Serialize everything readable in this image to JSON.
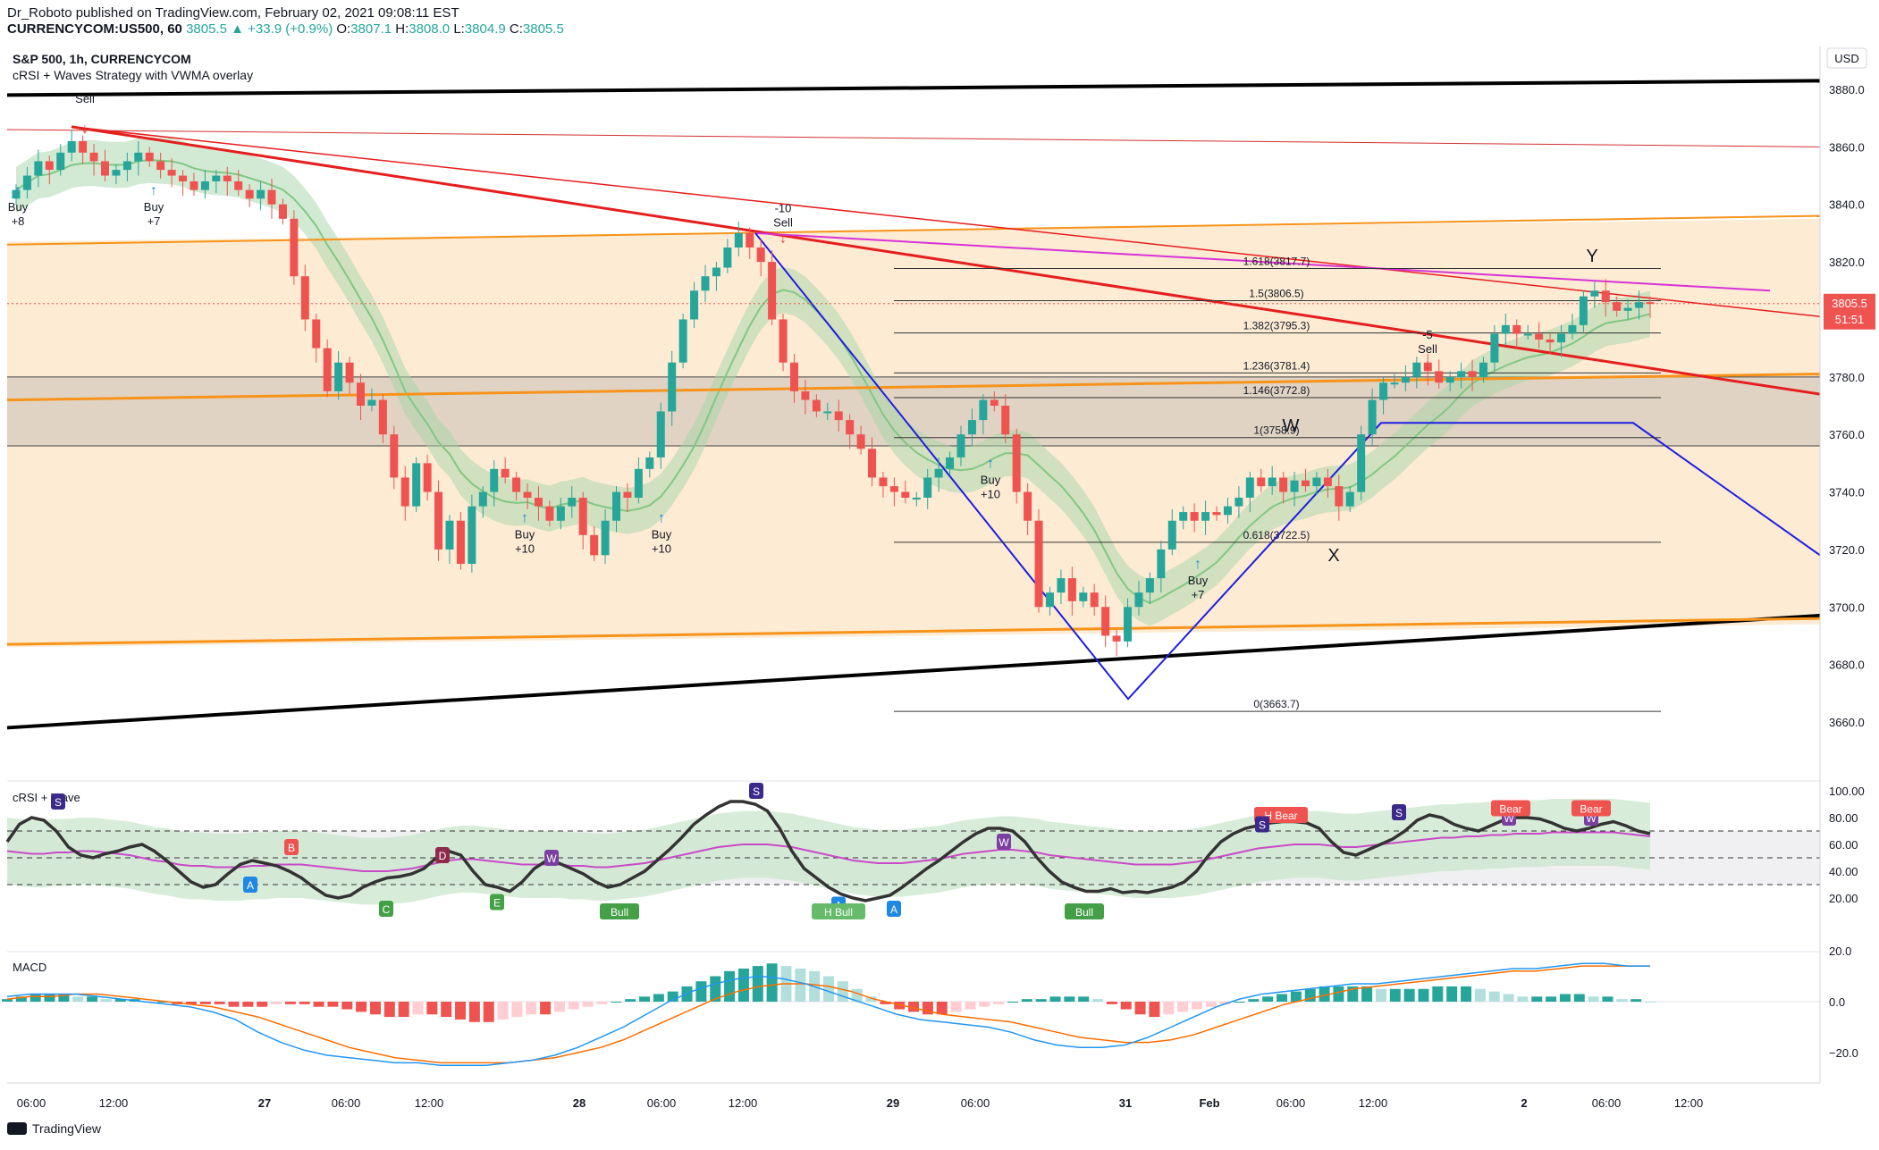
{
  "header": {
    "author": "Dr_Roboto",
    "published": "published on TradingView.com, February 02, 2021 09:08:11 EST",
    "symbol": "CURRENCYCOM:US500, 60",
    "change": "3805.5 ▲ +33.9 (+0.9%)",
    "o_label": "O:",
    "o_val": "3807.1",
    "h_label": "H:",
    "h_val": "3808.0",
    "l_label": "L:",
    "l_val": "3804.9",
    "c_label": "C:",
    "c_val": "3805.5"
  },
  "chart": {
    "title": "S&P 500, 1h, CURRENCYCOM",
    "indicator": "cRSI + Waves Strategy with VWMA overlay",
    "currency": "USD",
    "last_price": "3805.5",
    "countdown": "51:51"
  },
  "colors": {
    "up": "#26a69a",
    "down": "#ef5350",
    "red_line": "#e51e1e",
    "orange": "#f7931a",
    "blue": "#1e1ee0",
    "magenta": "#d633d6"
  },
  "chart_data": [
    {
      "type": "line",
      "title": "S&P 500, 1h, CURRENCYCOM",
      "ylim": [
        3650,
        3890
      ],
      "y_ticks": [
        3660,
        3680,
        3700,
        3720,
        3740,
        3760,
        3780,
        3800,
        3820,
        3840,
        3860,
        3880
      ],
      "x_ticks": [
        "06:00",
        "12:00",
        "27",
        "06:00",
        "12:00",
        "28",
        "06:00",
        "12:00",
        "29",
        "06:00",
        "31",
        "Feb",
        "06:00",
        "12:00",
        "2",
        "06:00",
        "12:00"
      ],
      "close_series": [
        3845,
        3850,
        3855,
        3852,
        3858,
        3862,
        3858,
        3855,
        3850,
        3852,
        3855,
        3858,
        3855,
        3852,
        3850,
        3848,
        3845,
        3848,
        3850,
        3848,
        3845,
        3842,
        3845,
        3840,
        3835,
        3815,
        3800,
        3790,
        3775,
        3785,
        3778,
        3770,
        3772,
        3760,
        3745,
        3735,
        3750,
        3740,
        3720,
        3730,
        3715,
        3735,
        3740,
        3748,
        3745,
        3740,
        3738,
        3735,
        3730,
        3735,
        3738,
        3725,
        3718,
        3730,
        3740,
        3738,
        3748,
        3752,
        3768,
        3785,
        3800,
        3810,
        3815,
        3818,
        3825,
        3830,
        3825,
        3820,
        3800,
        3785,
        3775,
        3772,
        3768,
        3768,
        3765,
        3760,
        3755,
        3745,
        3742,
        3740,
        3738,
        3738,
        3745,
        3748,
        3752,
        3760,
        3765,
        3772,
        3770,
        3760,
        3740,
        3730,
        3700,
        3705,
        3710,
        3702,
        3705,
        3700,
        3690,
        3688,
        3700,
        3705,
        3710,
        3720,
        3730,
        3733,
        3730,
        3733,
        3732,
        3735,
        3738,
        3745,
        3742,
        3745,
        3740,
        3744,
        3742,
        3745,
        3742,
        3735,
        3740,
        3760,
        3772,
        3778,
        3778,
        3780,
        3785,
        3782,
        3778,
        3780,
        3782,
        3780,
        3785,
        3795,
        3798,
        3795,
        3795,
        3793,
        3792,
        3795,
        3798,
        3808,
        3810,
        3806,
        3803,
        3804,
        3806,
        3805.5
      ],
      "fib_levels": [
        {
          "label": "1.618(3817.7)",
          "value": 3817.7
        },
        {
          "label": "1.5(3806.5)",
          "value": 3806.5
        },
        {
          "label": "1.382(3795.3)",
          "value": 3795.3
        },
        {
          "label": "1.236(3781.4)",
          "value": 3781.4
        },
        {
          "label": "1.146(3772.8)",
          "value": 3772.8
        },
        {
          "label": "1(3758.9)",
          "value": 3758.9
        },
        {
          "label": "0.618(3722.5)",
          "value": 3722.5
        },
        {
          "label": "0(3663.7)",
          "value": 3663.7
        }
      ],
      "signals": [
        {
          "text": "Sell",
          "kind": "sell"
        },
        {
          "text": "Buy",
          "sub": "+8",
          "kind": "buy"
        },
        {
          "text": "Buy",
          "sub": "+7",
          "kind": "buy"
        },
        {
          "text": "-10",
          "sub": "Sell",
          "kind": "sell"
        },
        {
          "text": "Buy",
          "sub": "+10",
          "kind": "buy"
        },
        {
          "text": "Buy",
          "sub": "+10",
          "kind": "buy"
        },
        {
          "text": "Buy",
          "sub": "+10",
          "kind": "buy"
        },
        {
          "text": "-5",
          "sub": "Sell",
          "kind": "sell"
        },
        {
          "text": "Buy",
          "sub": "+7",
          "kind": "buy"
        }
      ],
      "wave_labels": [
        "W",
        "X",
        "Y"
      ]
    },
    {
      "type": "line",
      "title": "cRSI + Wave",
      "ylim": [
        0,
        100
      ],
      "y_ticks": [
        "100.00",
        "80.00",
        "60.00",
        "40.00",
        "20.00"
      ],
      "crsi": [
        62,
        75,
        80,
        78,
        70,
        58,
        52,
        50,
        53,
        55,
        58,
        60,
        55,
        48,
        40,
        32,
        28,
        30,
        38,
        45,
        48,
        46,
        44,
        40,
        35,
        28,
        22,
        20,
        22,
        28,
        32,
        35,
        36,
        38,
        42,
        50,
        55,
        52,
        40,
        30,
        28,
        25,
        32,
        42,
        48,
        46,
        42,
        38,
        32,
        28,
        30,
        35,
        40,
        48,
        56,
        65,
        75,
        82,
        88,
        92,
        92,
        90,
        85,
        72,
        55,
        42,
        35,
        28,
        23,
        20,
        18,
        20,
        22,
        28,
        35,
        42,
        48,
        55,
        62,
        68,
        72,
        72,
        70,
        62,
        50,
        40,
        32,
        28,
        25,
        25,
        27,
        24,
        25,
        24,
        26,
        28,
        32,
        40,
        52,
        62,
        68,
        72,
        74,
        76,
        77,
        77,
        76,
        72,
        62,
        54,
        52,
        56,
        60,
        64,
        70,
        78,
        82,
        80,
        75,
        72,
        70,
        74,
        78,
        80,
        80,
        79,
        76,
        72,
        70,
        72,
        75,
        77,
        74,
        70,
        68
      ],
      "crsi_signal": [
        55,
        54,
        53,
        53,
        54,
        54,
        55,
        55,
        54,
        53,
        52,
        50,
        48,
        47,
        45,
        44,
        44,
        43,
        43,
        43,
        44,
        44,
        45,
        45,
        45,
        44,
        43,
        42,
        41,
        40,
        40,
        40,
        41,
        42,
        44,
        46,
        48,
        49,
        49,
        48,
        47,
        46,
        45,
        45,
        45,
        45,
        44,
        44,
        43,
        43,
        44,
        45,
        46,
        48,
        50,
        52,
        54,
        56,
        58,
        59,
        60,
        60,
        60,
        59,
        58,
        56,
        54,
        52,
        50,
        48,
        47,
        46,
        46,
        46,
        47,
        48,
        49,
        51,
        53,
        54,
        55,
        56,
        56,
        55,
        54,
        52,
        51,
        50,
        49,
        48,
        47,
        46,
        45,
        45,
        45,
        45,
        46,
        47,
        49,
        51,
        53,
        55,
        57,
        58,
        59,
        60,
        60,
        60,
        59,
        58,
        58,
        59,
        60,
        61,
        62,
        63,
        64,
        65,
        65,
        66,
        66,
        67,
        67,
        68,
        68,
        68,
        69,
        69,
        69,
        69,
        69,
        69,
        68,
        67,
        66
      ],
      "levels": [
        70,
        50,
        30
      ],
      "labels": [
        "S",
        "A",
        "B",
        "D",
        "C",
        "E",
        "W",
        "Bull",
        "S",
        "A",
        "H Bull",
        "A",
        "W",
        "Bull",
        "H Bear",
        "S",
        "S",
        "W",
        "Bear",
        "W",
        "Bear"
      ]
    },
    {
      "type": "bar",
      "title": "MACD",
      "ylim": [
        -30,
        25
      ],
      "y_ticks": [
        "20.0",
        "0.0",
        "−20.0"
      ],
      "histogram": [
        1,
        2,
        3,
        3,
        3,
        2,
        2,
        1,
        1,
        1,
        0,
        0,
        -1,
        -1,
        -1,
        -1,
        -2,
        -2,
        -2,
        -1,
        -1,
        -1,
        -2,
        -2,
        -3,
        -4,
        -5,
        -6,
        -6,
        -5,
        -5,
        -6,
        -7,
        -8,
        -8,
        -7,
        -6,
        -5,
        -5,
        -4,
        -3,
        -2,
        -1,
        0,
        1,
        2,
        3,
        4,
        6,
        8,
        10,
        12,
        13,
        14,
        15,
        14,
        13,
        12,
        10,
        8,
        5,
        2,
        -1,
        -3,
        -4,
        -5,
        -5,
        -4,
        -3,
        -2,
        -1,
        0,
        1,
        1,
        2,
        2,
        2,
        1,
        -1,
        -3,
        -5,
        -6,
        -5,
        -4,
        -3,
        -2,
        -1,
        0,
        1,
        2,
        3,
        4,
        5,
        6,
        6,
        6,
        6,
        5,
        5,
        5,
        5,
        6,
        6,
        6,
        5,
        4,
        3,
        2,
        2,
        2,
        3,
        3,
        2,
        2,
        1,
        1,
        0
      ],
      "macd": [
        2,
        3,
        3,
        3,
        2,
        1,
        0,
        -1,
        -2,
        -4,
        -7,
        -12,
        -16,
        -19,
        -21,
        -22,
        -23,
        -24,
        -24,
        -25,
        -25,
        -25,
        -24,
        -23,
        -21,
        -18,
        -14,
        -10,
        -5,
        0,
        4,
        7,
        9,
        10,
        9,
        7,
        4,
        1,
        -2,
        -5,
        -7,
        -8,
        -9,
        -10,
        -12,
        -15,
        -17,
        -18,
        -18,
        -17,
        -14,
        -10,
        -6,
        -2,
        1,
        3,
        4,
        5,
        6,
        7,
        7,
        8,
        9,
        10,
        11,
        12,
        13,
        13,
        14,
        15,
        15,
        14,
        14
      ],
      "signal": [
        1,
        2,
        2,
        3,
        3,
        2,
        1,
        0,
        -1,
        -2,
        -4,
        -6,
        -9,
        -12,
        -15,
        -18,
        -20,
        -22,
        -23,
        -24,
        -24,
        -24,
        -24,
        -23,
        -22,
        -20,
        -18,
        -15,
        -11,
        -7,
        -3,
        1,
        4,
        6,
        7,
        7,
        6,
        4,
        1,
        -1,
        -3,
        -5,
        -6,
        -7,
        -8,
        -10,
        -12,
        -14,
        -15,
        -16,
        -16,
        -15,
        -13,
        -10,
        -7,
        -4,
        -1,
        1,
        3,
        5,
        6,
        7,
        8,
        9,
        10,
        11,
        12,
        12,
        13,
        14,
        14,
        14,
        14
      ]
    }
  ],
  "footer": {
    "brand": "TradingView"
  }
}
